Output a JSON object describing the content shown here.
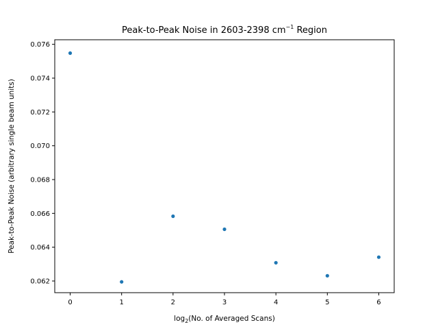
{
  "chart_data": {
    "type": "scatter",
    "title_main": "Peak-to-Peak Noise in 2603-2398 cm",
    "title_sup": "−1",
    "title_end": " Region",
    "xlabel_pre": "log",
    "xlabel_sub": "2",
    "xlabel_post": "(No. of Averaged Scans)",
    "ylabel": "Peak-to-Peak Noise (arbitrary single beam units)",
    "xlim": [
      -0.3,
      6.3
    ],
    "ylim": [
      0.06131,
      0.07627
    ],
    "xticks": [
      0,
      1,
      2,
      3,
      4,
      5,
      6
    ],
    "xtick_labels": [
      "0",
      "1",
      "2",
      "3",
      "4",
      "5",
      "6"
    ],
    "yticks": [
      0.062,
      0.064,
      0.066,
      0.068,
      0.07,
      0.072,
      0.074,
      0.076
    ],
    "ytick_labels": [
      "0.062",
      "0.064",
      "0.066",
      "0.068",
      "0.070",
      "0.072",
      "0.074",
      "0.076"
    ],
    "grid": false,
    "marker_color": "#1f77b4",
    "points": [
      {
        "x": 0,
        "y": 0.07548
      },
      {
        "x": 1,
        "y": 0.06195
      },
      {
        "x": 2,
        "y": 0.06583
      },
      {
        "x": 3,
        "y": 0.06506
      },
      {
        "x": 4,
        "y": 0.06308
      },
      {
        "x": 5,
        "y": 0.06231
      },
      {
        "x": 6,
        "y": 0.06341
      }
    ]
  }
}
